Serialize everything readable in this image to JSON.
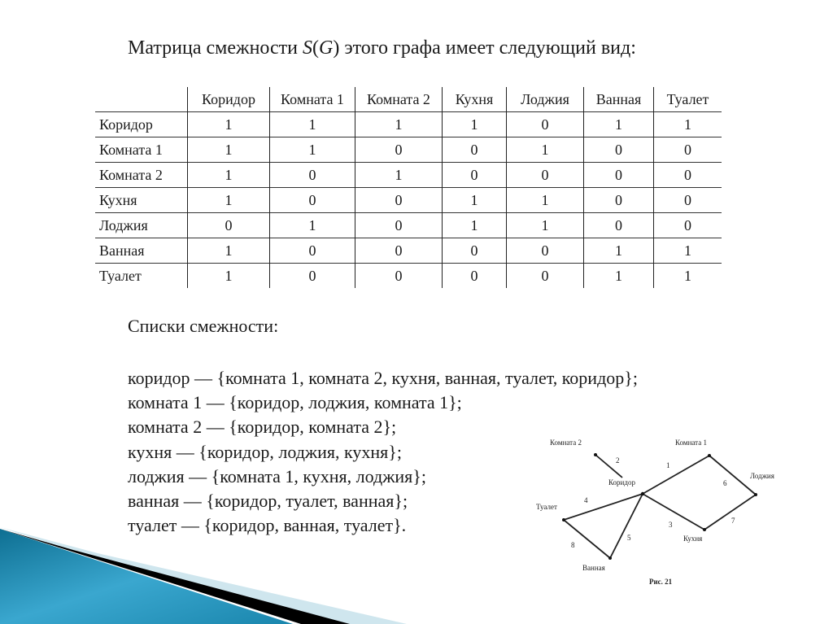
{
  "title": {
    "prefix": "Матрица смежности ",
    "symbol": "S",
    "open": "(",
    "arg": "G",
    "suffix": ") этого графа имеет следующий вид:"
  },
  "matrix": {
    "columns": [
      "Коридор",
      "Комната 1",
      "Комната 2",
      "Кухня",
      "Лоджия",
      "Ванная",
      "Туалет"
    ],
    "rows": [
      {
        "label": "Коридор",
        "values": [
          "1",
          "1",
          "1",
          "1",
          "0",
          "1",
          "1"
        ]
      },
      {
        "label": "Комната 1",
        "values": [
          "1",
          "1",
          "0",
          "0",
          "1",
          "0",
          "0"
        ]
      },
      {
        "label": "Комната 2",
        "values": [
          "1",
          "0",
          "1",
          "0",
          "0",
          "0",
          "0"
        ]
      },
      {
        "label": "Кухня",
        "values": [
          "1",
          "0",
          "0",
          "1",
          "1",
          "0",
          "0"
        ]
      },
      {
        "label": "Лоджия",
        "values": [
          "0",
          "1",
          "0",
          "1",
          "1",
          "0",
          "0"
        ]
      },
      {
        "label": "Ванная",
        "values": [
          "1",
          "0",
          "0",
          "0",
          "0",
          "1",
          "1"
        ]
      },
      {
        "label": "Туалет",
        "values": [
          "1",
          "0",
          "0",
          "0",
          "0",
          "1",
          "1"
        ]
      }
    ]
  },
  "lists_title": "Списки смежности:",
  "lists": [
    "коридор — {комната 1, комната 2, кухня, ванная, туалет, коридор};",
    "комната 1 — {коридор, лоджия, комната 1};",
    "комната 2 — {коридор, комната 2};",
    "кухня — {коридор, лоджия, кухня};",
    "лоджия — {комната 1, кухня, лоджия};",
    "ванная — {коридор, туалет, ванная};",
    "туалет — {коридор, ванная, туалет}."
  ],
  "figure": {
    "caption": "Рис. 21",
    "nodes": {
      "room2": "Комната 2",
      "corridor": "Коридор",
      "room1": "Комната 1",
      "loggia": "Лоджия",
      "kitchen": "Кухня",
      "toilet": "Туалет",
      "bath": "Ванная"
    },
    "edges": [
      "1",
      "2",
      "3",
      "4",
      "5",
      "6",
      "7",
      "8"
    ]
  },
  "colors": {
    "accent_blue": "#1f8fb5",
    "stripe_light": "#cfe6ee",
    "stripe_dark": "#000000"
  }
}
